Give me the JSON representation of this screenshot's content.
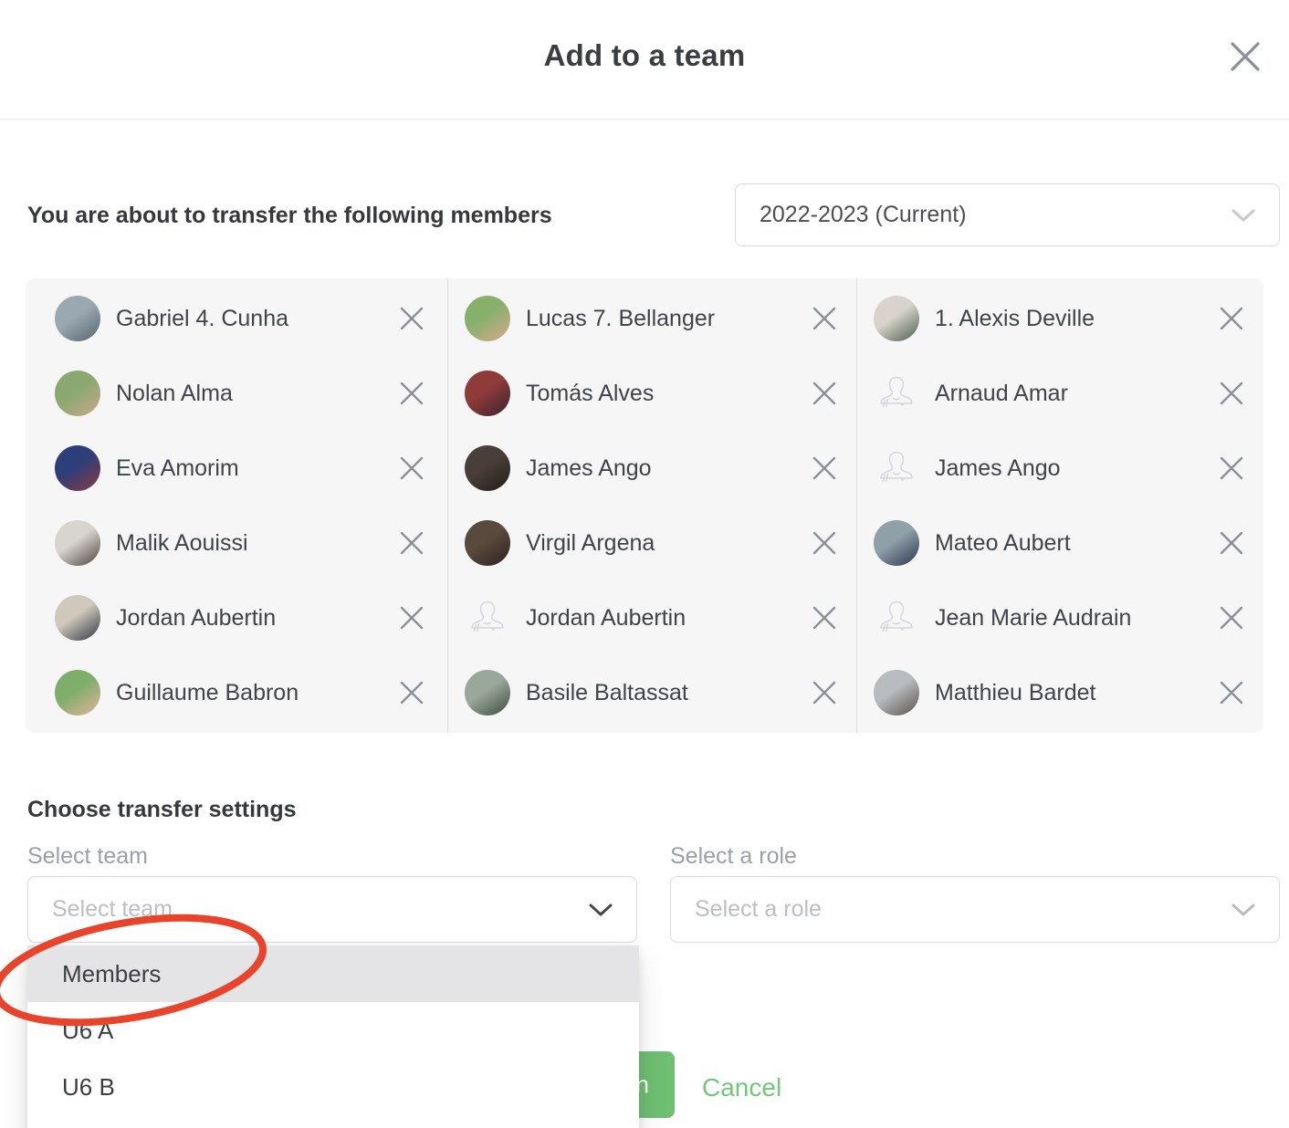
{
  "modal": {
    "title": "Add to a team"
  },
  "transfer": {
    "heading": "You are about to transfer the following members",
    "season_value": "2022-2023 (Current)"
  },
  "members": {
    "columns": [
      [
        {
          "name": "Gabriel 4. Cunha",
          "avatar": "photo",
          "colors": [
            "#9aa9b1",
            "#55636e"
          ]
        },
        {
          "name": "Nolan Alma",
          "avatar": "photo",
          "colors": [
            "#8aa86f",
            "#caa98c"
          ]
        },
        {
          "name": "Eva Amorim",
          "avatar": "photo",
          "colors": [
            "#2d3e7a",
            "#8c3a3f"
          ]
        },
        {
          "name": "Malik Aouissi",
          "avatar": "photo",
          "colors": [
            "#d8d4cf",
            "#4a423c"
          ]
        },
        {
          "name": "Jordan Aubertin",
          "avatar": "photo",
          "colors": [
            "#cfc8bd",
            "#2e3440"
          ]
        },
        {
          "name": "Guillaume Babron",
          "avatar": "photo",
          "colors": [
            "#7fae6b",
            "#e2b49a"
          ]
        }
      ],
      [
        {
          "name": "Lucas 7. Bellanger",
          "avatar": "photo",
          "colors": [
            "#88b06d",
            "#d9a98e"
          ]
        },
        {
          "name": "Tomás Alves",
          "avatar": "photo",
          "colors": [
            "#8e3b3a",
            "#3a2430"
          ]
        },
        {
          "name": "James Ango",
          "avatar": "photo",
          "colors": [
            "#4a3f38",
            "#201b18"
          ]
        },
        {
          "name": "Virgil Argena",
          "avatar": "photo",
          "colors": [
            "#5a4a3e",
            "#2b241f"
          ]
        },
        {
          "name": "Jordan Aubertin",
          "avatar": "placeholder"
        },
        {
          "name": "Basile Baltassat",
          "avatar": "photo",
          "colors": [
            "#9aa89a",
            "#3f4a42"
          ]
        }
      ],
      [
        {
          "name": "1. Alexis Deville",
          "avatar": "photo",
          "colors": [
            "#d8d4cc",
            "#4a5e48"
          ]
        },
        {
          "name": "Arnaud Amar",
          "avatar": "placeholder"
        },
        {
          "name": "James Ango",
          "avatar": "placeholder"
        },
        {
          "name": "Mateo Aubert",
          "avatar": "photo",
          "colors": [
            "#8fa0a8",
            "#2c3550"
          ]
        },
        {
          "name": "Jean Marie Audrain",
          "avatar": "placeholder"
        },
        {
          "name": "Matthieu Bardet",
          "avatar": "photo",
          "colors": [
            "#b8bcc0",
            "#5a5048"
          ]
        }
      ]
    ]
  },
  "settings": {
    "heading": "Choose transfer settings",
    "team": {
      "label": "Select team",
      "placeholder": "Select team",
      "options": [
        "Members",
        "U6 A",
        "U6 B"
      ],
      "highlighted_option": "Members"
    },
    "role": {
      "label": "Select a role",
      "placeholder": "Select a role"
    }
  },
  "actions": {
    "transfer_button_visible_text": "n",
    "cancel_label": "Cancel"
  },
  "annotation": {
    "shape": "hand-drawn-ellipse",
    "color": "#e8432b",
    "around_option": "Members"
  },
  "icons": {
    "close": "x-icon",
    "remove_member": "x-icon",
    "select_chevron": "chevron-down-icon",
    "avatar_placeholder": "person-icon"
  },
  "colors": {
    "confirm_green": "#6fbf73",
    "cancel_green": "#74c67c",
    "annotation_red": "#e8432b",
    "option_highlight": "#e4e4e7",
    "panel_bg": "#f6f6f7"
  }
}
